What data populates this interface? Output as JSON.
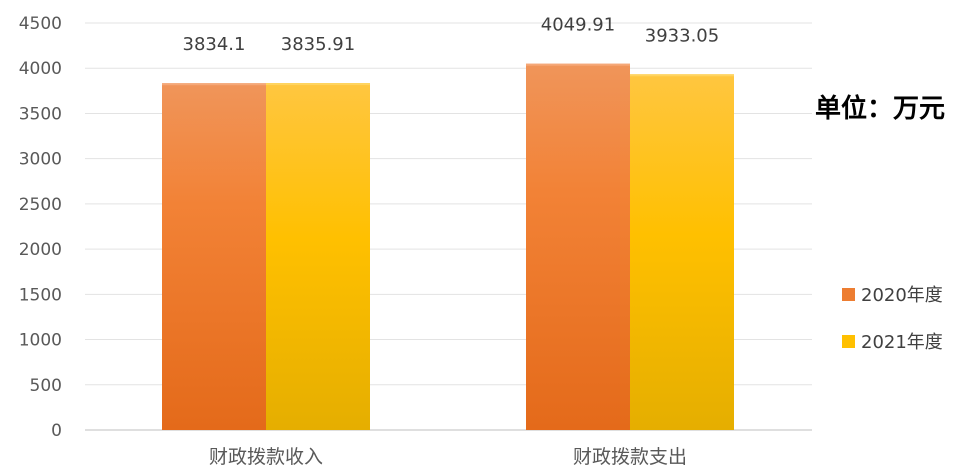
{
  "chart_data": {
    "type": "bar",
    "categories": [
      "财政拨款收入",
      "财政拨款支出"
    ],
    "series": [
      {
        "name": "2020年度",
        "values": [
          3834.1,
          4049.91
        ],
        "labels": [
          "3834.1",
          "4049.91"
        ],
        "color": "#ED7D31"
      },
      {
        "name": "2021年度",
        "values": [
          3835.91,
          3933.05
        ],
        "labels": [
          "3835.91",
          "3933.05"
        ],
        "color": "#FFC000"
      }
    ],
    "yticks": [
      "0",
      "500",
      "1000",
      "1500",
      "2000",
      "2500",
      "3000",
      "3500",
      "4000",
      "4500"
    ],
    "ylim": [
      0,
      4500
    ],
    "grid": true,
    "legend": "right"
  },
  "unit_label": "单位：万元"
}
